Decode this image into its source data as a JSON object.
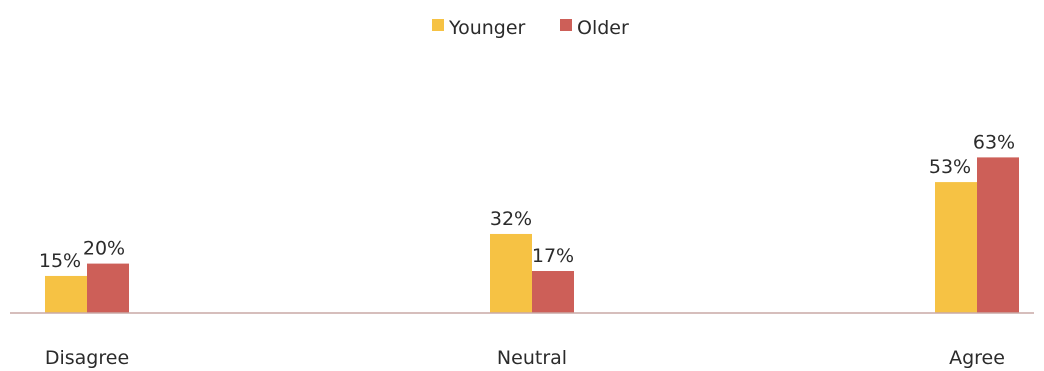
{
  "chart_data": {
    "type": "bar",
    "categories": [
      "Disagree",
      "Neutral",
      "Agree"
    ],
    "series": [
      {
        "name": "Younger",
        "values": [
          15,
          32,
          53
        ],
        "labels": [
          "15%",
          "32%",
          "53%"
        ]
      },
      {
        "name": "Older",
        "values": [
          20,
          17,
          63
        ],
        "labels": [
          "20%",
          "17%",
          "63%"
        ]
      }
    ],
    "colors": {
      "Younger": "#F6C244",
      "Older": "#CD5F58",
      "axis": "#c9a9a6"
    },
    "unit": "%",
    "ylim": [
      0,
      100
    ],
    "grid": false,
    "legend_position": "top-center",
    "title": "",
    "xlabel": "",
    "ylabel": ""
  }
}
